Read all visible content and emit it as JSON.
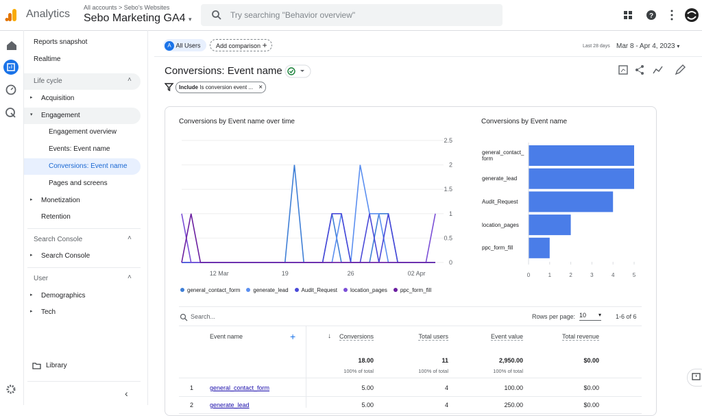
{
  "header": {
    "product": "Analytics",
    "breadcrumb": [
      "All accounts",
      "Sebo's Websites"
    ],
    "property": "Sebo Marketing GA4",
    "search_placeholder": "Try searching \"Behavior overview\""
  },
  "sidebar": {
    "top": [
      "Reports snapshot",
      "Realtime"
    ],
    "sections": [
      {
        "title": "Life cycle",
        "items": [
          "Acquisition",
          "Engagement",
          "Engagement overview",
          "Events: Event name",
          "Conversions: Event name",
          "Pages and screens",
          "Monetization",
          "Retention"
        ]
      },
      {
        "title": "Search Console",
        "items": [
          "Search Console"
        ]
      },
      {
        "title": "User",
        "items": [
          "Demographics",
          "Tech"
        ]
      }
    ],
    "library": "Library"
  },
  "toolbar": {
    "segment_letter": "A",
    "segment": "All Users",
    "add_comparison": "Add comparison",
    "date_caption": "Last 28 days",
    "date_range": "Mar 8 - Apr 4, 2023"
  },
  "report": {
    "title": "Conversions: Event name",
    "filter_bold": "Include",
    "filter_text": "Is conversion event ..."
  },
  "line_chart": {
    "type": "line",
    "title": "Conversions by Event name over time",
    "categories": [
      null,
      null,
      null,
      null,
      "12 Mar",
      null,
      null,
      null,
      null,
      null,
      null,
      "19",
      null,
      null,
      null,
      null,
      null,
      null,
      "26",
      null,
      null,
      null,
      null,
      null,
      null,
      "02 Apr",
      null,
      null
    ],
    "series": [
      {
        "name": "general_contact_form",
        "color": "#3f7fd6",
        "values": [
          0,
          0,
          0,
          0,
          0,
          0,
          0,
          0,
          0,
          0,
          0,
          0,
          2,
          0,
          0,
          0,
          1,
          0,
          0,
          0,
          0,
          1,
          1,
          0,
          0,
          0,
          0,
          0
        ]
      },
      {
        "name": "generate_lead",
        "color": "#5b8ff0",
        "values": [
          0,
          0,
          0,
          0,
          0,
          0,
          0,
          0,
          0,
          0,
          0,
          0,
          0,
          0,
          0,
          0,
          0,
          1,
          0,
          2,
          1,
          1,
          0,
          0,
          0,
          0,
          0,
          0
        ]
      },
      {
        "name": "Audit_Request",
        "color": "#4a4ad8",
        "values": [
          0,
          0,
          0,
          0,
          0,
          0,
          0,
          0,
          0,
          0,
          0,
          0,
          0,
          0,
          0,
          0,
          1,
          1,
          0,
          0,
          1,
          0,
          1,
          0,
          0,
          0,
          0,
          0
        ]
      },
      {
        "name": "location_pages",
        "color": "#7b4fd6",
        "values": [
          1,
          0,
          0,
          0,
          0,
          0,
          0,
          0,
          0,
          0,
          0,
          0,
          0,
          0,
          0,
          0,
          0,
          0,
          0,
          0,
          0,
          0,
          0,
          0,
          0,
          0,
          0,
          1
        ]
      },
      {
        "name": "ppc_form_fill",
        "color": "#6b1fa0",
        "values": [
          0,
          1,
          0,
          0,
          0,
          0,
          0,
          0,
          0,
          0,
          0,
          0,
          0,
          0,
          0,
          0,
          0,
          0,
          0,
          0,
          0,
          0,
          0,
          0,
          0,
          0,
          0,
          0
        ]
      }
    ],
    "ylim": [
      0,
      2.5
    ],
    "yticks": [
      0,
      0.5,
      1,
      1.5,
      2,
      2.5
    ],
    "grid": true
  },
  "bar_chart": {
    "type": "bar",
    "title": "Conversions by Event name",
    "categories": [
      "general_contact_form",
      "generate_lead",
      "Audit_Request",
      "location_pages",
      "ppc_form_fill"
    ],
    "values": [
      5,
      5,
      4,
      2,
      1
    ],
    "color": "#4a7de8",
    "xlim": [
      0,
      5
    ],
    "xticks": [
      0,
      1,
      2,
      3,
      4,
      5
    ]
  },
  "table": {
    "search_placeholder": "Search...",
    "rows_per_page_label": "Rows per page:",
    "rows_per_page": "10",
    "pagination": "1-6 of 6",
    "columns": [
      "Event name",
      "Conversions",
      "Total users",
      "Event value",
      "Total revenue"
    ],
    "totals": [
      "18.00",
      "11",
      "2,950.00",
      "$0.00"
    ],
    "totals_note": "100% of total",
    "rows": [
      [
        "1",
        "general_contact_form",
        "5.00",
        "4",
        "100.00",
        "$0.00"
      ],
      [
        "2",
        "generate_lead",
        "5.00",
        "4",
        "250.00",
        "$0.00"
      ]
    ]
  }
}
